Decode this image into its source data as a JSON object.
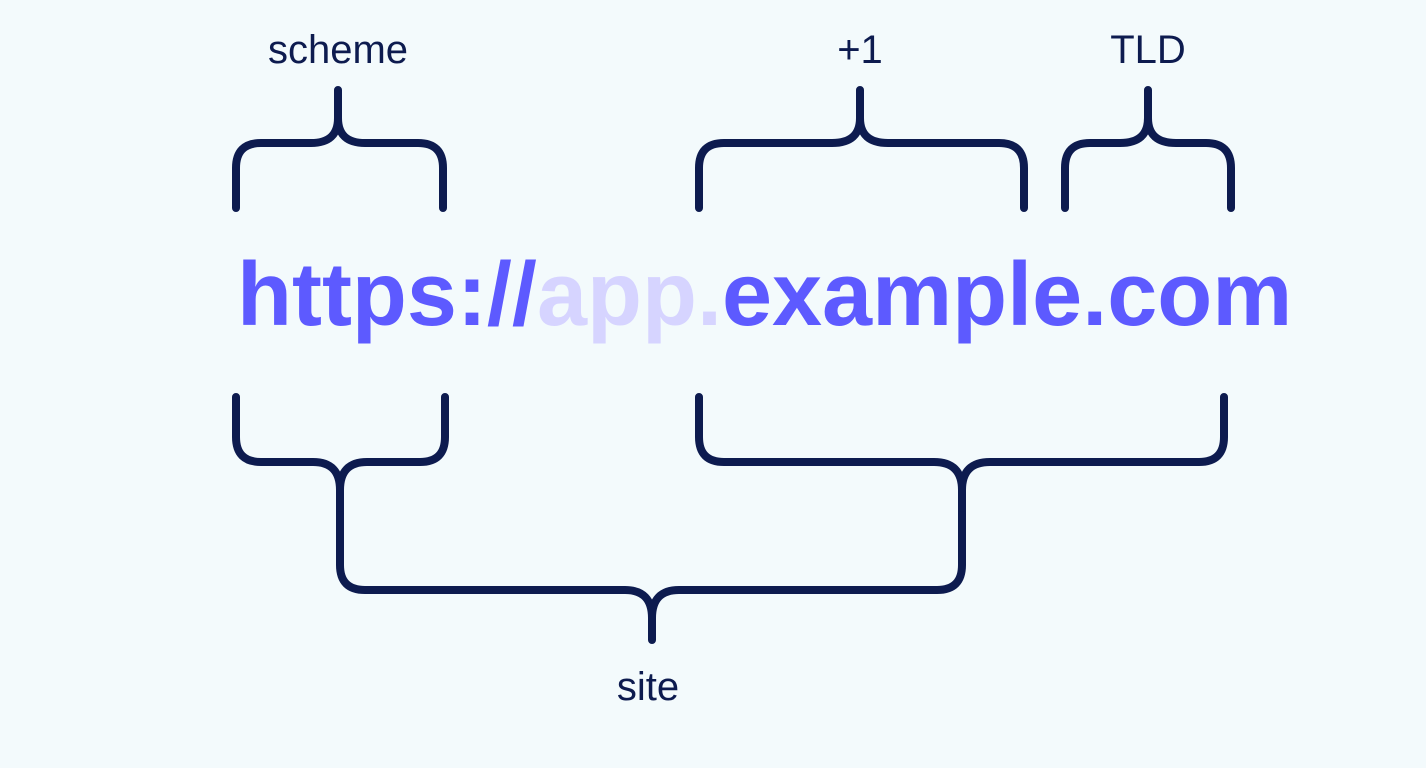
{
  "labels": {
    "scheme": "scheme",
    "plus_one": "+1",
    "tld": "TLD",
    "site": "site"
  },
  "url": {
    "scheme": "https://",
    "subdomain": "app.",
    "domain": "example",
    "tld": ".com"
  },
  "colors": {
    "background": "#f3fafc",
    "brace": "#0d1b4f",
    "label": "#0d1b4f",
    "url_strong": "#5d5aff",
    "url_faded": "#d6d4ff"
  }
}
